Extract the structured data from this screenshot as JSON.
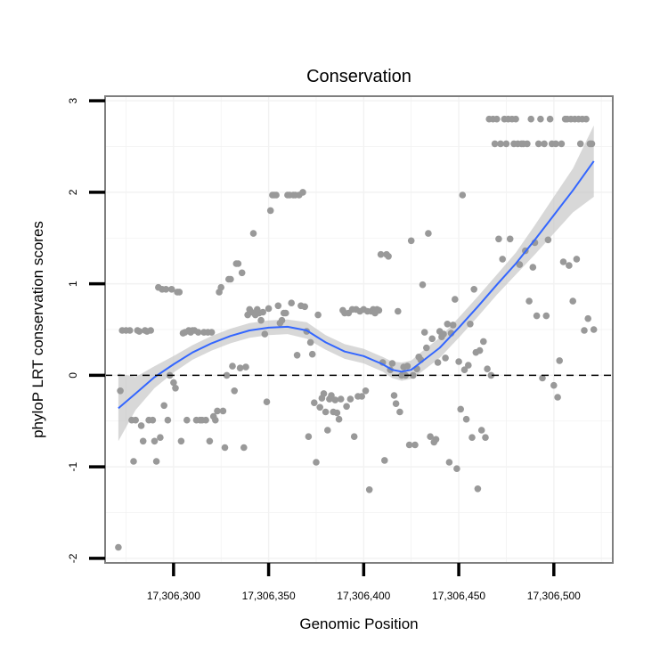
{
  "chart_data": {
    "type": "scatter",
    "title": "Conservation",
    "xlabel": "Genomic Position",
    "ylabel": "phyloP LRT conservation scores",
    "xlim": [
      17306264,
      17306531
    ],
    "ylim": [
      -2.05,
      3.05
    ],
    "x_ticks": [
      17306300,
      17306350,
      17306400,
      17306450,
      17306500
    ],
    "x_tick_labels": [
      "17,306,300",
      "17,306,350",
      "17,306,400",
      "17,306,450",
      "17,306,500"
    ],
    "y_ticks": [
      -2,
      -1,
      0,
      1,
      2,
      3
    ],
    "y_tick_labels": [
      "-2",
      "-1",
      "0",
      "1",
      "2",
      "3"
    ],
    "reference_line": {
      "y": 0,
      "style": "dashed"
    },
    "colors": {
      "points": "#999999",
      "smooth_line": "#3366ff",
      "confidence_band": "#bebebe",
      "grid": "#f2f2f2",
      "frame": "#7f7f7f",
      "ref_line": "#000000"
    },
    "points": [
      [
        17306271,
        -1.88
      ],
      [
        17306272,
        -0.17
      ],
      [
        17306273,
        0.49
      ],
      [
        17306275,
        0.49
      ],
      [
        17306277,
        0.49
      ],
      [
        17306278,
        -0.49
      ],
      [
        17306279,
        -0.94
      ],
      [
        17306280,
        -0.49
      ],
      [
        17306281,
        0.49
      ],
      [
        17306282,
        0.48
      ],
      [
        17306283,
        -0.55
      ],
      [
        17306284,
        -0.72
      ],
      [
        17306285,
        0.49
      ],
      [
        17306286,
        0.48
      ],
      [
        17306287,
        -0.49
      ],
      [
        17306288,
        0.49
      ],
      [
        17306289,
        -0.49
      ],
      [
        17306290,
        -0.72
      ],
      [
        17306291,
        -0.94
      ],
      [
        17306292,
        0.96
      ],
      [
        17306293,
        -0.68
      ],
      [
        17306294,
        0.94
      ],
      [
        17306295,
        -0.33
      ],
      [
        17306296,
        0.94
      ],
      [
        17306297,
        -0.49
      ],
      [
        17306298,
        0.0
      ],
      [
        17306299,
        0.94
      ],
      [
        17306300,
        -0.08
      ],
      [
        17306301,
        -0.14
      ],
      [
        17306302,
        0.91
      ],
      [
        17306303,
        0.91
      ],
      [
        17306304,
        -0.72
      ],
      [
        17306305,
        0.46
      ],
      [
        17306306,
        0.47
      ],
      [
        17306307,
        -0.49
      ],
      [
        17306308,
        0.49
      ],
      [
        17306309,
        0.47
      ],
      [
        17306310,
        0.49
      ],
      [
        17306311,
        0.49
      ],
      [
        17306312,
        -0.49
      ],
      [
        17306313,
        0.47
      ],
      [
        17306314,
        -0.49
      ],
      [
        17306315,
        -0.49
      ],
      [
        17306316,
        0.47
      ],
      [
        17306317,
        -0.49
      ],
      [
        17306318,
        0.47
      ],
      [
        17306319,
        -0.72
      ],
      [
        17306320,
        0.47
      ],
      [
        17306321,
        -0.45
      ],
      [
        17306322,
        -0.49
      ],
      [
        17306323,
        -0.39
      ],
      [
        17306324,
        0.91
      ],
      [
        17306325,
        0.96
      ],
      [
        17306326,
        -0.39
      ],
      [
        17306327,
        -0.79
      ],
      [
        17306328,
        0.0
      ],
      [
        17306329,
        1.05
      ],
      [
        17306330,
        1.05
      ],
      [
        17306331,
        0.1
      ],
      [
        17306332,
        -0.17
      ],
      [
        17306333,
        1.22
      ],
      [
        17306334,
        1.22
      ],
      [
        17306335,
        0.08
      ],
      [
        17306336,
        1.12
      ],
      [
        17306337,
        -0.79
      ],
      [
        17306338,
        0.09
      ],
      [
        17306339,
        0.66
      ],
      [
        17306340,
        0.72
      ],
      [
        17306341,
        0.69
      ],
      [
        17306342,
        1.55
      ],
      [
        17306343,
        0.66
      ],
      [
        17306344,
        0.72
      ],
      [
        17306345,
        0.68
      ],
      [
        17306346,
        0.6
      ],
      [
        17306347,
        0.69
      ],
      [
        17306348,
        0.45
      ],
      [
        17306349,
        -0.29
      ],
      [
        17306350,
        0.73
      ],
      [
        17306351,
        1.8
      ],
      [
        17306352,
        1.97
      ],
      [
        17306353,
        1.97
      ],
      [
        17306354,
        1.97
      ],
      [
        17306355,
        0.76
      ],
      [
        17306356,
        0.57
      ],
      [
        17306357,
        0.6
      ],
      [
        17306358,
        0.68
      ],
      [
        17306359,
        0.68
      ],
      [
        17306360,
        1.97
      ],
      [
        17306361,
        1.97
      ],
      [
        17306362,
        0.79
      ],
      [
        17306363,
        1.97
      ],
      [
        17306364,
        1.97
      ],
      [
        17306365,
        0.22
      ],
      [
        17306366,
        1.97
      ],
      [
        17306367,
        0.76
      ],
      [
        17306368,
        2.0
      ],
      [
        17306369,
        0.75
      ],
      [
        17306370,
        0.48
      ],
      [
        17306371,
        -0.67
      ],
      [
        17306372,
        0.36
      ],
      [
        17306373,
        0.23
      ],
      [
        17306374,
        -0.3
      ],
      [
        17306375,
        -0.95
      ],
      [
        17306376,
        0.66
      ],
      [
        17306377,
        -0.35
      ],
      [
        17306378,
        -0.25
      ],
      [
        17306379,
        -0.2
      ],
      [
        17306380,
        -0.4
      ],
      [
        17306381,
        -0.6
      ],
      [
        17306382,
        -0.26
      ],
      [
        17306383,
        -0.22
      ],
      [
        17306384,
        -0.4
      ],
      [
        17306385,
        -0.27
      ],
      [
        17306386,
        -0.41
      ],
      [
        17306387,
        -0.48
      ],
      [
        17306388,
        -0.26
      ],
      [
        17306389,
        0.71
      ],
      [
        17306390,
        0.68
      ],
      [
        17306391,
        -0.34
      ],
      [
        17306392,
        0.68
      ],
      [
        17306393,
        -0.26
      ],
      [
        17306394,
        0.72
      ],
      [
        17306395,
        -0.67
      ],
      [
        17306396,
        0.72
      ],
      [
        17306397,
        -0.23
      ],
      [
        17306398,
        0.7
      ],
      [
        17306399,
        -0.23
      ],
      [
        17306400,
        0.72
      ],
      [
        17306401,
        -0.17
      ],
      [
        17306402,
        0.7
      ],
      [
        17306403,
        -1.25
      ],
      [
        17306404,
        0.7
      ],
      [
        17306405,
        0.72
      ],
      [
        17306406,
        0.68
      ],
      [
        17306407,
        0.72
      ],
      [
        17306408,
        0.71
      ],
      [
        17306409,
        1.32
      ],
      [
        17306410,
        0.14
      ],
      [
        17306411,
        -0.93
      ],
      [
        17306412,
        1.32
      ],
      [
        17306413,
        1.3
      ],
      [
        17306414,
        0.06
      ],
      [
        17306415,
        0.13
      ],
      [
        17306416,
        -0.22
      ],
      [
        17306417,
        -0.31
      ],
      [
        17306418,
        0.7
      ],
      [
        17306419,
        -0.4
      ],
      [
        17306420,
        0.0
      ],
      [
        17306421,
        0.09
      ],
      [
        17306422,
        0.0
      ],
      [
        17306423,
        0.1
      ],
      [
        17306424,
        -0.76
      ],
      [
        17306425,
        1.47
      ],
      [
        17306426,
        0.0
      ],
      [
        17306427,
        -0.76
      ],
      [
        17306428,
        0.07
      ],
      [
        17306429,
        0.2
      ],
      [
        17306430,
        0.17
      ],
      [
        17306431,
        0.99
      ],
      [
        17306432,
        0.47
      ],
      [
        17306433,
        0.3
      ],
      [
        17306434,
        1.55
      ],
      [
        17306435,
        -0.67
      ],
      [
        17306436,
        0.4
      ],
      [
        17306437,
        -0.73
      ],
      [
        17306438,
        -0.7
      ],
      [
        17306439,
        0.14
      ],
      [
        17306440,
        0.48
      ],
      [
        17306441,
        0.42
      ],
      [
        17306442,
        0.45
      ],
      [
        17306443,
        0.19
      ],
      [
        17306444,
        0.56
      ],
      [
        17306445,
        -0.95
      ],
      [
        17306446,
        0.46
      ],
      [
        17306447,
        0.55
      ],
      [
        17306448,
        0.83
      ],
      [
        17306449,
        -1.02
      ],
      [
        17306450,
        0.15
      ],
      [
        17306451,
        -0.37
      ],
      [
        17306452,
        1.97
      ],
      [
        17306453,
        0.06
      ],
      [
        17306454,
        -0.48
      ],
      [
        17306455,
        0.11
      ],
      [
        17306456,
        0.56
      ],
      [
        17306457,
        -0.68
      ],
      [
        17306458,
        0.94
      ],
      [
        17306459,
        0.25
      ],
      [
        17306460,
        -1.24
      ],
      [
        17306461,
        0.27
      ],
      [
        17306462,
        -0.6
      ],
      [
        17306463,
        0.37
      ],
      [
        17306464,
        -0.68
      ],
      [
        17306465,
        0.07
      ],
      [
        17306466,
        2.8
      ],
      [
        17306467,
        0.0
      ],
      [
        17306468,
        2.8
      ],
      [
        17306469,
        2.53
      ],
      [
        17306470,
        2.8
      ],
      [
        17306471,
        1.49
      ],
      [
        17306472,
        2.53
      ],
      [
        17306473,
        1.27
      ],
      [
        17306474,
        2.8
      ],
      [
        17306475,
        2.53
      ],
      [
        17306476,
        2.8
      ],
      [
        17306477,
        1.49
      ],
      [
        17306478,
        2.8
      ],
      [
        17306479,
        2.53
      ],
      [
        17306480,
        2.8
      ],
      [
        17306481,
        2.53
      ],
      [
        17306482,
        1.21
      ],
      [
        17306483,
        2.53
      ],
      [
        17306484,
        2.53
      ],
      [
        17306485,
        1.36
      ],
      [
        17306486,
        2.53
      ],
      [
        17306487,
        0.81
      ],
      [
        17306488,
        2.8
      ],
      [
        17306489,
        1.18
      ],
      [
        17306490,
        1.45
      ],
      [
        17306491,
        0.65
      ],
      [
        17306492,
        2.53
      ],
      [
        17306493,
        2.8
      ],
      [
        17306494,
        -0.03
      ],
      [
        17306495,
        2.53
      ],
      [
        17306496,
        0.65
      ],
      [
        17306497,
        1.48
      ],
      [
        17306498,
        2.8
      ],
      [
        17306499,
        2.53
      ],
      [
        17306500,
        -0.11
      ],
      [
        17306501,
        2.53
      ],
      [
        17306502,
        -0.24
      ],
      [
        17306503,
        0.16
      ],
      [
        17306504,
        2.53
      ],
      [
        17306505,
        1.24
      ],
      [
        17306506,
        2.8
      ],
      [
        17306507,
        2.8
      ],
      [
        17306508,
        1.2
      ],
      [
        17306509,
        2.8
      ],
      [
        17306510,
        0.81
      ],
      [
        17306511,
        2.8
      ],
      [
        17306512,
        1.27
      ],
      [
        17306513,
        2.8
      ],
      [
        17306514,
        2.53
      ],
      [
        17306515,
        2.8
      ],
      [
        17306516,
        0.49
      ],
      [
        17306517,
        2.8
      ],
      [
        17306518,
        0.62
      ],
      [
        17306519,
        2.53
      ],
      [
        17306520,
        2.53
      ],
      [
        17306521,
        0.5
      ]
    ],
    "smooth": {
      "x": [
        17306271,
        17306280,
        17306290,
        17306300,
        17306310,
        17306320,
        17306330,
        17306340,
        17306350,
        17306360,
        17306370,
        17306380,
        17306390,
        17306400,
        17306410,
        17306415,
        17306420,
        17306425,
        17306430,
        17306440,
        17306450,
        17306460,
        17306470,
        17306480,
        17306490,
        17306500,
        17306510,
        17306521
      ],
      "y": [
        -0.36,
        -0.2,
        -0.02,
        0.12,
        0.25,
        0.35,
        0.43,
        0.49,
        0.52,
        0.53,
        0.49,
        0.36,
        0.26,
        0.21,
        0.12,
        0.06,
        0.04,
        0.06,
        0.14,
        0.3,
        0.52,
        0.75,
        0.99,
        1.22,
        1.48,
        1.75,
        2.02,
        2.34
      ],
      "lower": [
        -0.72,
        -0.38,
        -0.14,
        0.03,
        0.17,
        0.27,
        0.35,
        0.41,
        0.44,
        0.45,
        0.4,
        0.28,
        0.18,
        0.13,
        0.04,
        -0.03,
        -0.06,
        -0.04,
        0.03,
        0.19,
        0.41,
        0.64,
        0.88,
        1.1,
        1.32,
        1.55,
        1.78,
        1.95
      ],
      "upper": [
        0.02,
        -0.02,
        0.1,
        0.21,
        0.33,
        0.43,
        0.51,
        0.57,
        0.6,
        0.61,
        0.58,
        0.44,
        0.34,
        0.29,
        0.2,
        0.15,
        0.14,
        0.16,
        0.25,
        0.41,
        0.63,
        0.86,
        1.1,
        1.34,
        1.64,
        1.95,
        2.26,
        2.73
      ]
    }
  }
}
